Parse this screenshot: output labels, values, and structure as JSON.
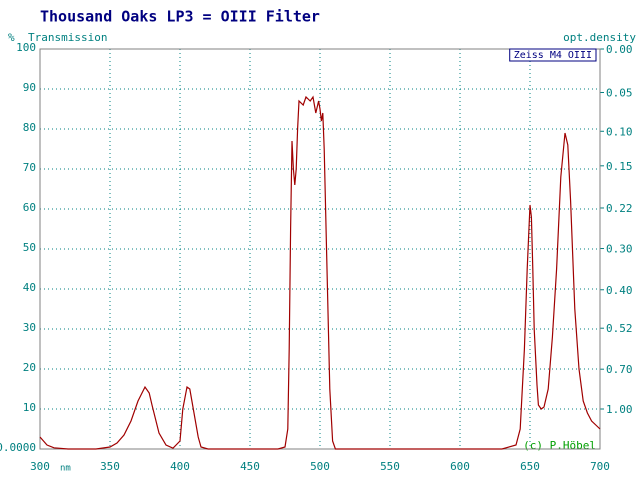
{
  "chart_data": {
    "type": "line",
    "title": "Thousand Oaks LP3 = OIII Filter",
    "ylabel": "Transmission",
    "yunit": "%",
    "y2label": "opt.density",
    "xlabel": "nm",
    "credit": "(c) P.Höbel",
    "xlim": [
      300,
      700
    ],
    "ylim": [
      0,
      100
    ],
    "xticks": [
      300,
      350,
      400,
      450,
      500,
      550,
      600,
      650,
      700
    ],
    "yticks": [
      {
        "value": 0,
        "label": "0.0000"
      },
      10,
      20,
      30,
      40,
      50,
      60,
      70,
      80,
      90,
      100
    ],
    "y2scale": "optical-density",
    "y2ticks": [
      {
        "value": 0,
        "label": "0.00"
      },
      0.05,
      {
        "value": 0.1,
        "label": "0.10"
      },
      0.15,
      0.22,
      {
        "value": 0.3,
        "label": "0.30"
      },
      {
        "value": 0.4,
        "label": "0.40"
      },
      0.52,
      {
        "value": 0.7,
        "label": "0.70"
      },
      {
        "value": 1,
        "label": "1.00"
      }
    ],
    "grid": true,
    "legend": "top-right",
    "series": [
      {
        "name": "Zeiss M4 OIII",
        "color": "#a00000",
        "x": [
          300,
          305,
          310,
          320,
          340,
          350,
          355,
          360,
          365,
          370,
          375,
          378,
          380,
          385,
          390,
          395,
          400,
          402,
          405,
          407,
          410,
          413,
          415,
          420,
          470,
          475,
          477,
          478,
          479,
          480,
          481,
          482,
          483,
          484,
          485,
          488,
          490,
          493,
          495,
          497,
          499,
          500,
          501,
          502,
          503,
          505,
          507,
          509,
          511,
          520,
          630,
          640,
          643,
          646,
          648,
          650,
          651,
          652,
          653,
          655,
          656,
          658,
          660,
          663,
          666,
          669,
          672,
          675,
          677,
          679,
          682,
          685,
          688,
          691,
          694,
          697,
          700
        ],
        "values": [
          3,
          1,
          0.3,
          0,
          0,
          0.5,
          1.5,
          3.5,
          7,
          12,
          15.5,
          14,
          11,
          4,
          1,
          0.2,
          2,
          10,
          15.5,
          15,
          9,
          3,
          0.5,
          0,
          0,
          0.5,
          5,
          25,
          55,
          77,
          70,
          66,
          70,
          80,
          87,
          86,
          88,
          87,
          88,
          84,
          87,
          85,
          82,
          84,
          75,
          45,
          15,
          2,
          0,
          0,
          0,
          1,
          5,
          25,
          45,
          61,
          58,
          45,
          30,
          16,
          11,
          10,
          10.5,
          15,
          28,
          45,
          68,
          79,
          76,
          62,
          35,
          20,
          12,
          9,
          7,
          6,
          5
        ]
      }
    ]
  }
}
